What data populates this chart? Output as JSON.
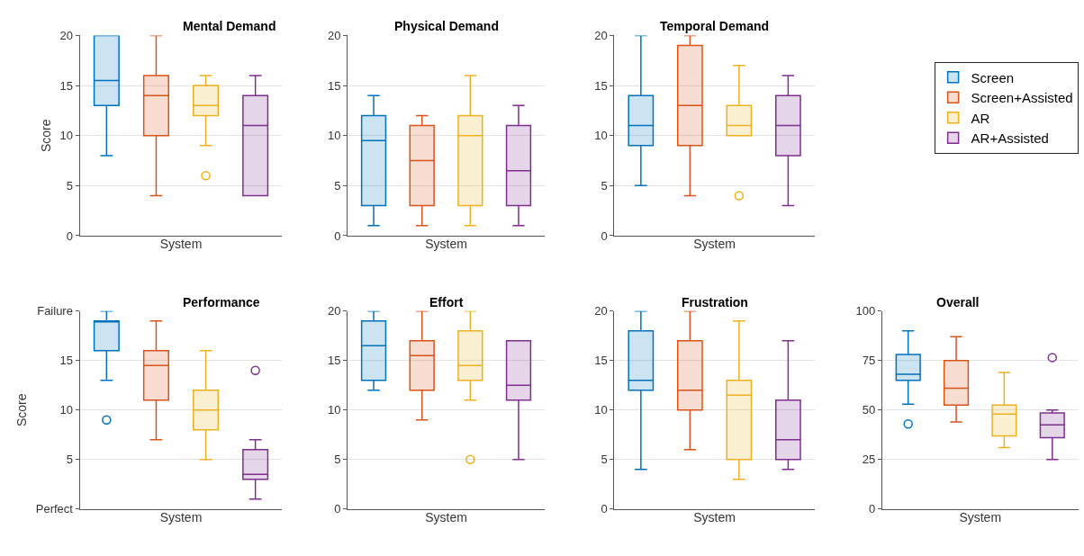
{
  "chart_data": [
    {
      "type": "box",
      "title": "Mental Demand",
      "xlabel": "System",
      "ylabel": "Score",
      "categories": [
        null
      ],
      "ylim": [
        0,
        20
      ],
      "yticks": [
        0,
        5,
        10,
        15,
        20
      ],
      "grid": "y",
      "tick_labels": "y",
      "legend": "top right",
      "series": [
        {
          "name": "Screen",
          "color": "#0072bd",
          "boxes": [
            {
              "low": 8,
              "q1": 13,
              "median": 15.5,
              "q3": 20,
              "high": 20
            }
          ]
        },
        {
          "name": "Screen+Assisted",
          "color": "#d95319",
          "boxes": [
            {
              "low": 4,
              "q1": 10,
              "median": 14,
              "q3": 16,
              "high": 20
            }
          ]
        },
        {
          "name": "AR",
          "color": "#edb120",
          "boxes": [
            {
              "low": 9,
              "q1": 12,
              "median": 13,
              "q3": 15,
              "high": 16,
              "outliers": [
                6
              ]
            }
          ]
        },
        {
          "name": "AR+Assisted",
          "color": "#7e2f8e",
          "boxes": [
            {
              "low": 4,
              "q1": 4,
              "median": 11,
              "q3": 14,
              "high": 16
            }
          ]
        }
      ]
    },
    {
      "type": "box",
      "title": "Physical Demand",
      "xlabel": "System",
      "categories": [
        null
      ],
      "ylim": [
        0,
        20
      ],
      "yticks": [
        0,
        5,
        10,
        15,
        20
      ],
      "grid": "y",
      "tick_labels": "y",
      "series": [
        {
          "color": "#0072bd",
          "boxes": [
            {
              "low": 1,
              "q1": 3,
              "median": 9.5,
              "q3": 12,
              "high": 14
            }
          ]
        },
        {
          "color": "#d95319",
          "boxes": [
            {
              "low": 1,
              "q1": 3,
              "median": 7.5,
              "q3": 11,
              "high": 12
            }
          ]
        },
        {
          "color": "#edb120",
          "boxes": [
            {
              "low": 1,
              "q1": 3,
              "median": 10,
              "q3": 12,
              "high": 16
            }
          ]
        },
        {
          "color": "#7e2f8e",
          "boxes": [
            {
              "low": 1,
              "q1": 3,
              "median": 6.5,
              "q3": 11,
              "high": 13
            }
          ]
        }
      ]
    },
    {
      "type": "box",
      "title": "Temporal Demand",
      "xlabel": "System",
      "categories": [
        null
      ],
      "ylim": [
        0,
        20
      ],
      "yticks": [
        0,
        5,
        10,
        15,
        20
      ],
      "grid": "y",
      "tick_labels": "y",
      "series": [
        {
          "color": "#0072bd",
          "boxes": [
            {
              "low": 5,
              "q1": 9,
              "median": 11,
              "q3": 14,
              "high": 20
            }
          ]
        },
        {
          "color": "#d95319",
          "boxes": [
            {
              "low": 4,
              "q1": 9,
              "median": 13,
              "q3": 19,
              "high": 20
            }
          ]
        },
        {
          "color": "#edb120",
          "boxes": [
            {
              "low": 10,
              "q1": 10,
              "median": 11,
              "q3": 13,
              "high": 17,
              "outliers": [
                4
              ]
            }
          ]
        },
        {
          "color": "#7e2f8e",
          "boxes": [
            {
              "low": 3,
              "q1": 8,
              "median": 11,
              "q3": 14,
              "high": 16
            }
          ]
        }
      ]
    },
    {
      "type": "box",
      "title": "Performance",
      "xlabel": "System",
      "ylabel": "Score",
      "categories": [
        null
      ],
      "ylim": [
        0,
        20
      ],
      "yticks": [
        {
          "value": 0,
          "label": "Perfect"
        },
        5,
        10,
        15,
        {
          "value": 20,
          "label": "Failure"
        }
      ],
      "grid": "y",
      "tick_labels": "y",
      "series": [
        {
          "color": "#0072bd",
          "boxes": [
            {
              "low": 13,
              "q1": 16,
              "median": 19,
              "q3": 19,
              "high": 20,
              "outliers": [
                9
              ]
            }
          ]
        },
        {
          "color": "#d95319",
          "boxes": [
            {
              "low": 7,
              "q1": 11,
              "median": 14.5,
              "q3": 16,
              "high": 19
            }
          ]
        },
        {
          "color": "#edb120",
          "boxes": [
            {
              "low": 5,
              "q1": 8,
              "median": 10,
              "q3": 12,
              "high": 16
            }
          ]
        },
        {
          "color": "#7e2f8e",
          "boxes": [
            {
              "low": 1,
              "q1": 3,
              "median": 3.5,
              "q3": 6,
              "high": 7,
              "outliers": [
                14
              ]
            }
          ]
        }
      ]
    },
    {
      "type": "box",
      "title": "Effort",
      "xlabel": "System",
      "categories": [
        null
      ],
      "ylim": [
        0,
        20
      ],
      "yticks": [
        0,
        5,
        10,
        15,
        20
      ],
      "grid": "y",
      "tick_labels": "y",
      "series": [
        {
          "color": "#0072bd",
          "boxes": [
            {
              "low": 12,
              "q1": 13,
              "median": 16.5,
              "q3": 19,
              "high": 20
            }
          ]
        },
        {
          "color": "#d95319",
          "boxes": [
            {
              "low": 9,
              "q1": 12,
              "median": 15.5,
              "q3": 17,
              "high": 20
            }
          ]
        },
        {
          "color": "#edb120",
          "boxes": [
            {
              "low": 11,
              "q1": 13,
              "median": 14.5,
              "q3": 18,
              "high": 20,
              "outliers": [
                5
              ]
            }
          ]
        },
        {
          "color": "#7e2f8e",
          "boxes": [
            {
              "low": 5,
              "q1": 11,
              "median": 12.5,
              "q3": 17,
              "high": 17
            }
          ]
        }
      ]
    },
    {
      "type": "box",
      "title": "Frustration",
      "xlabel": "System",
      "categories": [
        null
      ],
      "ylim": [
        0,
        20
      ],
      "yticks": [
        0,
        5,
        10,
        15,
        20
      ],
      "grid": "y",
      "tick_labels": "y",
      "series": [
        {
          "color": "#0072bd",
          "boxes": [
            {
              "low": 4,
              "q1": 12,
              "median": 13,
              "q3": 18,
              "high": 20
            }
          ]
        },
        {
          "color": "#d95319",
          "boxes": [
            {
              "low": 6,
              "q1": 10,
              "median": 12,
              "q3": 17,
              "high": 20
            }
          ]
        },
        {
          "color": "#edb120",
          "boxes": [
            {
              "low": 3,
              "q1": 5,
              "median": 11.5,
              "q3": 13,
              "high": 19
            }
          ]
        },
        {
          "color": "#7e2f8e",
          "boxes": [
            {
              "low": 4,
              "q1": 5,
              "median": 7,
              "q3": 11,
              "high": 17
            }
          ]
        }
      ]
    },
    {
      "type": "box",
      "title": "Overall",
      "xlabel": "System",
      "categories": [
        null
      ],
      "ylim": [
        0,
        100
      ],
      "yticks": [
        0,
        25,
        50,
        75,
        100
      ],
      "grid": "y",
      "tick_labels": "y",
      "series": [
        {
          "color": "#0072bd",
          "boxes": [
            {
              "low": 53,
              "q1": 65,
              "median": 68,
              "q3": 78,
              "high": 90,
              "outliers": [
                43
              ]
            }
          ]
        },
        {
          "color": "#d95319",
          "boxes": [
            {
              "low": 44,
              "q1": 52.5,
              "median": 61,
              "q3": 75,
              "high": 87
            }
          ]
        },
        {
          "color": "#edb120",
          "boxes": [
            {
              "low": 31,
              "q1": 37,
              "median": 48,
              "q3": 52.5,
              "high": 69
            }
          ]
        },
        {
          "color": "#7e2f8e",
          "boxes": [
            {
              "low": 25,
              "q1": 36,
              "median": 42.5,
              "q3": 48.5,
              "high": 50,
              "outliers": [
                76.5
              ]
            }
          ]
        }
      ]
    }
  ]
}
